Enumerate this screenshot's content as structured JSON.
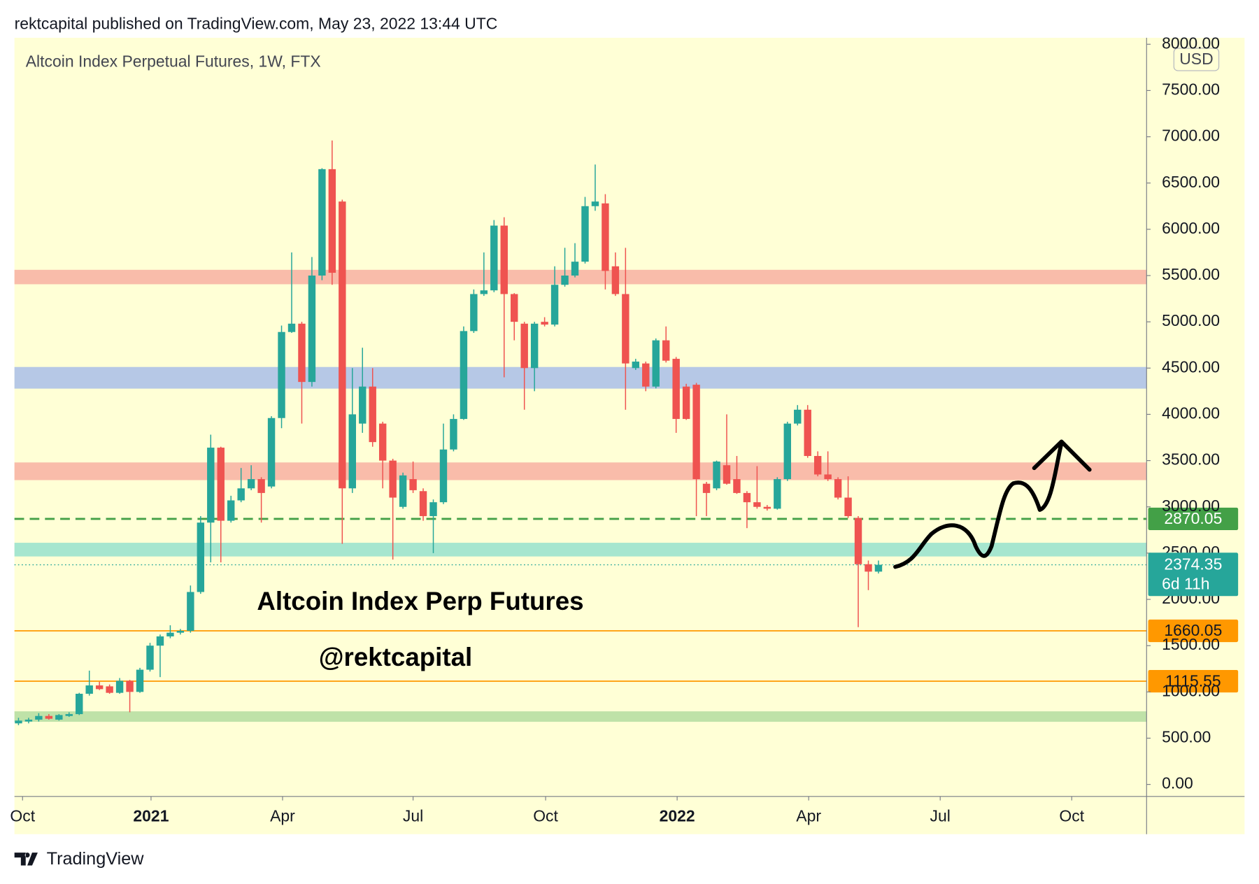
{
  "header": {
    "text": "rektcapital published on TradingView.com, May 23, 2022 13:44 UTC"
  },
  "footer": {
    "brand": "TradingView"
  },
  "chart_data": {
    "type": "candlestick",
    "title": "Altcoin Index Perpetual Futures, 1W, FTX",
    "currency": "USD",
    "annotations": [
      "Altcoin Index Perp Futures",
      "@rektcapital"
    ],
    "up_color": "#26a69a",
    "down_color": "#ef5350",
    "x": [
      0,
      1,
      2,
      3,
      4,
      5,
      6,
      7,
      8,
      9,
      10,
      11,
      12,
      13,
      14,
      15,
      16,
      17,
      18,
      19,
      20,
      21,
      22,
      23,
      24,
      25,
      26,
      27,
      28,
      29,
      30,
      31,
      32,
      33,
      34,
      35,
      36,
      37,
      38,
      39,
      40,
      41,
      42,
      43,
      44,
      45,
      46,
      47,
      48,
      49,
      50,
      51,
      52,
      53,
      54,
      55,
      56,
      57,
      58,
      59,
      60,
      61,
      62,
      63,
      64,
      65,
      66,
      67,
      68,
      69,
      70,
      71,
      72,
      73,
      74,
      75,
      76,
      77,
      78,
      79,
      80,
      81,
      82,
      83,
      84,
      85
    ],
    "open": [
      660,
      680,
      700,
      740,
      700,
      740,
      760,
      980,
      1070,
      1060,
      990,
      1120,
      1000,
      1240,
      1500,
      1600,
      1640,
      1660,
      2080,
      2830,
      3640,
      2850,
      3070,
      3200,
      3300,
      3220,
      3960,
      4890,
      4980,
      4350,
      5500,
      6650,
      6300,
      3200,
      3900,
      4300,
      3900,
      3500,
      3000,
      3300,
      3170,
      2900,
      3050,
      3620,
      3950,
      4900,
      5300,
      5340,
      6040,
      5300,
      4980,
      4500,
      5000,
      4970,
      5400,
      5500,
      5650,
      6250,
      6280,
      5600,
      5300,
      4500,
      4550,
      4300,
      4800,
      4600,
      4300,
      4320,
      3250,
      3200,
      3450,
      3300,
      3150,
      3050,
      3000,
      2980,
      3300,
      3900,
      4050,
      3550,
      3350,
      3300,
      3100,
      2880,
      2380,
      2300
    ],
    "high": [
      720,
      720,
      770,
      760,
      760,
      780,
      990,
      1230,
      1110,
      1080,
      1150,
      1130,
      1260,
      1530,
      1620,
      1720,
      1680,
      2150,
      2900,
      3780,
      3650,
      3120,
      3420,
      3450,
      3320,
      3980,
      4960,
      5750,
      5000,
      5700,
      6660,
      6960,
      6320,
      4500,
      4720,
      4500,
      3920,
      3520,
      3370,
      3490,
      3200,
      3080,
      3900,
      4000,
      4950,
      5350,
      5750,
      6100,
      6130,
      5310,
      5000,
      5000,
      5050,
      5600,
      5800,
      5850,
      6350,
      6700,
      6380,
      5750,
      5800,
      4600,
      4570,
      4820,
      4950,
      4620,
      4330,
      4340,
      3270,
      3500,
      4000,
      3550,
      3170,
      3440,
      3020,
      3320,
      3920,
      4100,
      4100,
      3600,
      3600,
      3320,
      3330,
      2900,
      2420,
      2420
    ],
    "low": [
      640,
      660,
      680,
      700,
      690,
      730,
      750,
      960,
      1020,
      980,
      980,
      780,
      990,
      1220,
      1160,
      1580,
      1620,
      1640,
      2060,
      2400,
      2400,
      2830,
      3050,
      3180,
      2830,
      3200,
      3850,
      4880,
      3900,
      4300,
      5450,
      5400,
      2600,
      3150,
      3800,
      3650,
      3200,
      2430,
      2980,
      3150,
      2850,
      2500,
      3030,
      3600,
      3940,
      4880,
      5280,
      5320,
      4400,
      4800,
      4050,
      4250,
      4950,
      4950,
      5380,
      5480,
      5630,
      6200,
      5350,
      5280,
      4050,
      4480,
      4250,
      4280,
      4560,
      3800,
      3940,
      2900,
      2900,
      3180,
      3240,
      3140,
      2770,
      2980,
      2960,
      2970,
      3280,
      3880,
      3530,
      3330,
      3280,
      3080,
      2880,
      1700,
      2100,
      2280
    ],
    "close": [
      690,
      700,
      740,
      710,
      750,
      760,
      980,
      1070,
      1030,
      990,
      1120,
      1000,
      1240,
      1500,
      1600,
      1640,
      1660,
      2080,
      2830,
      3640,
      2850,
      3070,
      3200,
      3300,
      3150,
      3960,
      4890,
      4980,
      4350,
      5500,
      6650,
      5530,
      3200,
      4000,
      4300,
      3700,
      3500,
      3100,
      3340,
      3180,
      2900,
      3050,
      3620,
      3950,
      4900,
      5300,
      5340,
      6040,
      5300,
      5000,
      4500,
      4980,
      4970,
      5400,
      5500,
      5650,
      6250,
      6300,
      5550,
      5300,
      4550,
      4570,
      4300,
      4800,
      4580,
      3950,
      3950,
      3300,
      3150,
      3490,
      3250,
      3150,
      3050,
      3000,
      2980,
      3300,
      3900,
      4050,
      3550,
      3350,
      3300,
      3100,
      2900,
      2380,
      2300,
      2374.35
    ],
    "xlim": [
      -0.4,
      111.5
    ],
    "xticks": [
      {
        "value": 0.4,
        "label": "Oct"
      },
      {
        "value": 13.1,
        "label": "2021"
      },
      {
        "value": 26.1,
        "label": "Apr"
      },
      {
        "value": 39,
        "label": "Jul"
      },
      {
        "value": 52.1,
        "label": "Oct"
      },
      {
        "value": 65.1,
        "label": "2022"
      },
      {
        "value": 78.1,
        "label": "Apr"
      },
      {
        "value": 91.1,
        "label": "Jul"
      },
      {
        "value": 104.1,
        "label": "Oct"
      }
    ],
    "ylim": [
      -130,
      8070
    ],
    "yticks": [
      {
        "value": 0,
        "label": "0.00"
      },
      {
        "value": 500,
        "label": "500.00"
      },
      {
        "value": 1000,
        "label": "1000.00"
      },
      {
        "value": 1500,
        "label": "1500.00"
      },
      {
        "value": 2000,
        "label": "2000.00"
      },
      {
        "value": 2500,
        "label": "2500.00"
      },
      {
        "value": 3000,
        "label": "3000.00"
      },
      {
        "value": 3500,
        "label": "3500.00"
      },
      {
        "value": 4000,
        "label": "4000.00"
      },
      {
        "value": 4500,
        "label": "4500.00"
      },
      {
        "value": 5000,
        "label": "5000.00"
      },
      {
        "value": 5500,
        "label": "5500.00"
      },
      {
        "value": 6000,
        "label": "6000.00"
      },
      {
        "value": 6500,
        "label": "6500.00"
      },
      {
        "value": 7000,
        "label": "7000.00"
      },
      {
        "value": 7500,
        "label": "7500.00"
      },
      {
        "value": 8000,
        "label": "8000.00"
      }
    ],
    "bands": [
      {
        "range": [
          5406,
          5562
        ],
        "color": "#f9bcaa"
      },
      {
        "range": [
          4278,
          4512
        ],
        "color": "#b6c8e6"
      },
      {
        "range": [
          3289,
          3480
        ],
        "color": "#f9bcaa"
      },
      {
        "range": [
          2464,
          2612
        ],
        "color": "#a6e6cf"
      },
      {
        "range": [
          677,
          790
        ],
        "color": "#bfe2a8"
      }
    ],
    "lines": [
      {
        "value": 2870.05,
        "color": "#43a047",
        "style": "dashed"
      },
      {
        "value": 1660.05,
        "color": "#ff9800",
        "style": "solid"
      },
      {
        "value": 1115.55,
        "color": "#ff9800",
        "style": "solid"
      }
    ],
    "last_price": {
      "value": 2374.35,
      "countdown": "6d 11h",
      "color": "#26a69a"
    }
  }
}
